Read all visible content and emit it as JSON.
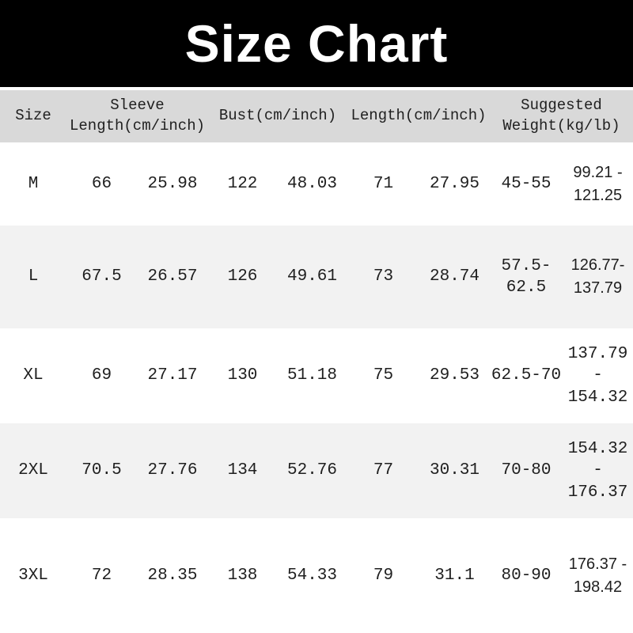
{
  "title": "Size Chart",
  "colors": {
    "banner-bg": "#000000",
    "banner-text": "#ffffff",
    "header-bg": "#d9d9d9",
    "alt-row-bg": "#f2f2f2",
    "row-bg": "#ffffff",
    "text": "#1a1a1a"
  },
  "table": {
    "headers": [
      {
        "label": "Size"
      },
      {
        "label": "Sleeve\nLength(cm/inch)"
      },
      {
        "label": "Bust(cm/inch)"
      },
      {
        "label": "Length(cm/inch)"
      },
      {
        "label": "Suggested\nWeight(kg/lb)"
      }
    ],
    "rows": [
      {
        "size": "M",
        "sleeve_cm": "66",
        "sleeve_inch": "25.98",
        "bust_cm": "122",
        "bust_inch": "48.03",
        "length_cm": "71",
        "length_inch": "27.95",
        "weight_kg": "45-55",
        "weight_lb": "99.21 -\n121.25"
      },
      {
        "size": "L",
        "sleeve_cm": "67.5",
        "sleeve_inch": "26.57",
        "bust_cm": "126",
        "bust_inch": "49.61",
        "length_cm": "73",
        "length_inch": "28.74",
        "weight_kg": "57.5-\n62.5",
        "weight_lb": "126.77-\n137.79"
      },
      {
        "size": "XL",
        "sleeve_cm": "69",
        "sleeve_inch": "27.17",
        "bust_cm": "130",
        "bust_inch": "51.18",
        "length_cm": "75",
        "length_inch": "29.53",
        "weight_kg": "62.5-70",
        "weight_lb": "137.79\n-\n154.32"
      },
      {
        "size": "2XL",
        "sleeve_cm": "70.5",
        "sleeve_inch": "27.76",
        "bust_cm": "134",
        "bust_inch": "52.76",
        "length_cm": "77",
        "length_inch": "30.31",
        "weight_kg": "70-80",
        "weight_lb": "154.32\n-\n176.37"
      },
      {
        "size": "3XL",
        "sleeve_cm": "72",
        "sleeve_inch": "28.35",
        "bust_cm": "138",
        "bust_inch": "54.33",
        "length_cm": "79",
        "length_inch": "31.1",
        "weight_kg": "80-90",
        "weight_lb": "176.37 -\n198.42"
      }
    ]
  },
  "chart_data": {
    "type": "table",
    "title": "Size Chart",
    "columns": [
      "Size",
      "Sleeve Length (cm)",
      "Sleeve Length (inch)",
      "Bust (cm)",
      "Bust (inch)",
      "Length (cm)",
      "Length (inch)",
      "Suggested Weight (kg)",
      "Suggested Weight (lb)"
    ],
    "rows": [
      [
        "M",
        66,
        25.98,
        122,
        48.03,
        71,
        27.95,
        "45-55",
        "99.21-121.25"
      ],
      [
        "L",
        67.5,
        26.57,
        126,
        49.61,
        73,
        28.74,
        "57.5-62.5",
        "126.77-137.79"
      ],
      [
        "XL",
        69,
        27.17,
        130,
        51.18,
        75,
        29.53,
        "62.5-70",
        "137.79-154.32"
      ],
      [
        "2XL",
        70.5,
        27.76,
        134,
        52.76,
        77,
        30.31,
        "70-80",
        "154.32-176.37"
      ],
      [
        "3XL",
        72,
        28.35,
        138,
        54.33,
        79,
        31.1,
        "80-90",
        "176.37-198.42"
      ]
    ]
  }
}
